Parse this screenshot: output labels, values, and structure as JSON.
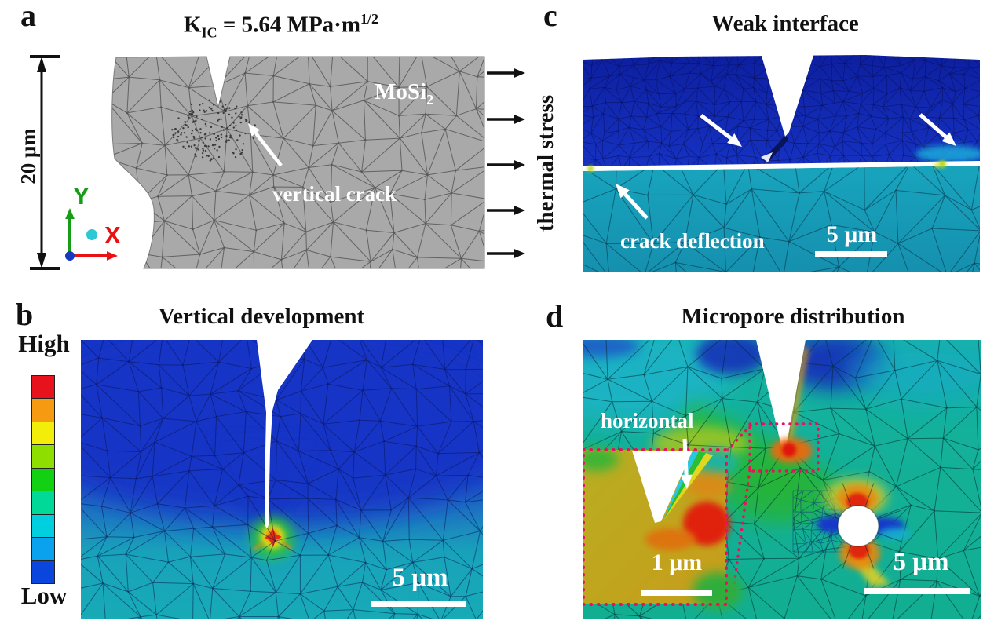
{
  "colors": {
    "material_gray": "#a9a9a9",
    "deep_blue": "#1331bc",
    "teal": "#16a0b6",
    "accent_crimson": "#e8115c",
    "axis_x_red": "#e81212",
    "axis_y_green": "#169c16",
    "axis_origin_blue": "#1838c0",
    "axis_dot_cyan": "#2cc8d4",
    "arrow_black": "#111111"
  },
  "colorbar": {
    "high": "High",
    "low": "Low",
    "colors": [
      "#e8121d",
      "#f59a11",
      "#f2ee0a",
      "#8ede00",
      "#12d112",
      "#00d998",
      "#00cfe0",
      "#0aa2ee",
      "#0a46dd"
    ]
  },
  "panels": {
    "a": {
      "label": "a",
      "title": {
        "k": "K",
        "sub": "IC",
        "mid": " = 5.64 MPa·m",
        "sup": "1/2"
      },
      "material": {
        "name": "MoSi",
        "sub": "2"
      },
      "crack_label": "vertical crack",
      "dimension": "20 μm",
      "stress_label": "thermal stress",
      "axes": {
        "x": "X",
        "y": "Y"
      }
    },
    "b": {
      "label": "b",
      "title": "Vertical development",
      "scalebar": "5 μm"
    },
    "c": {
      "label": "c",
      "title": "Weak interface",
      "deflection_label": "crack deflection",
      "scalebar": "5 μm"
    },
    "d": {
      "label": "d",
      "title": "Micropore distribution",
      "direction_label": "horizontal",
      "inset_scalebar": "1 μm",
      "scalebar": "5 μm"
    }
  }
}
